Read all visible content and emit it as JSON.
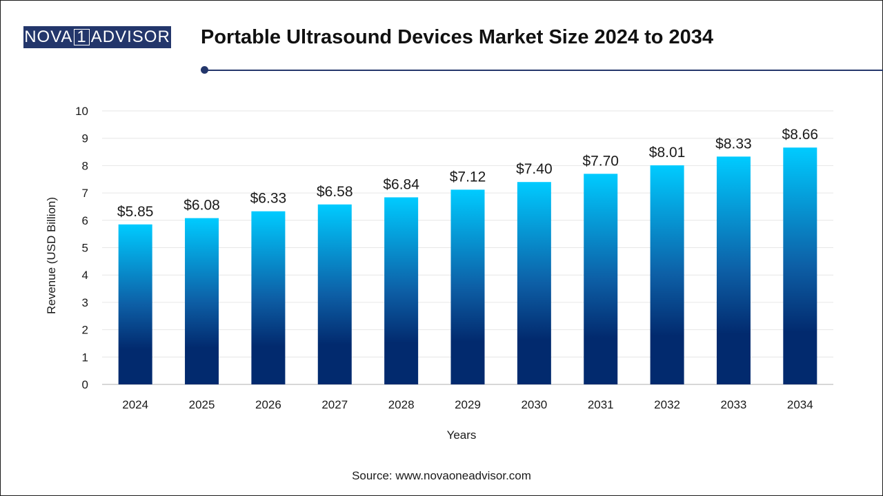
{
  "logo": {
    "left": "NOVA",
    "mid": "1",
    "right": "ADVISOR"
  },
  "header": {
    "title": "Portable Ultrasound Devices Market Size 2024 to 2034"
  },
  "source": "Source: www.novaoneadvisor.com",
  "colors": {
    "brand": "#23366b",
    "bar_top": "#00cbff",
    "bar_bottom": "#022a6e",
    "grid": "#e6e6e6"
  },
  "chart_data": {
    "type": "bar",
    "title": "Portable Ultrasound Devices Market Size 2024 to 2034",
    "xlabel": "Years",
    "ylabel": "Revenue (USD Billion)",
    "ylim": [
      0,
      10
    ],
    "yticks": [
      0,
      1,
      2,
      3,
      4,
      5,
      6,
      7,
      8,
      9,
      10
    ],
    "categories": [
      "2024",
      "2025",
      "2026",
      "2027",
      "2028",
      "2029",
      "2030",
      "2031",
      "2032",
      "2033",
      "2034"
    ],
    "values": [
      5.85,
      6.08,
      6.33,
      6.58,
      6.84,
      7.12,
      7.4,
      7.7,
      8.01,
      8.33,
      8.66
    ],
    "data_labels": [
      "$5.85",
      "$6.08",
      "$6.33",
      "$6.58",
      "$6.84",
      "$7.12",
      "$7.40",
      "$7.70",
      "$8.01",
      "$8.33",
      "$8.66"
    ],
    "grid": true,
    "legend": "none"
  }
}
